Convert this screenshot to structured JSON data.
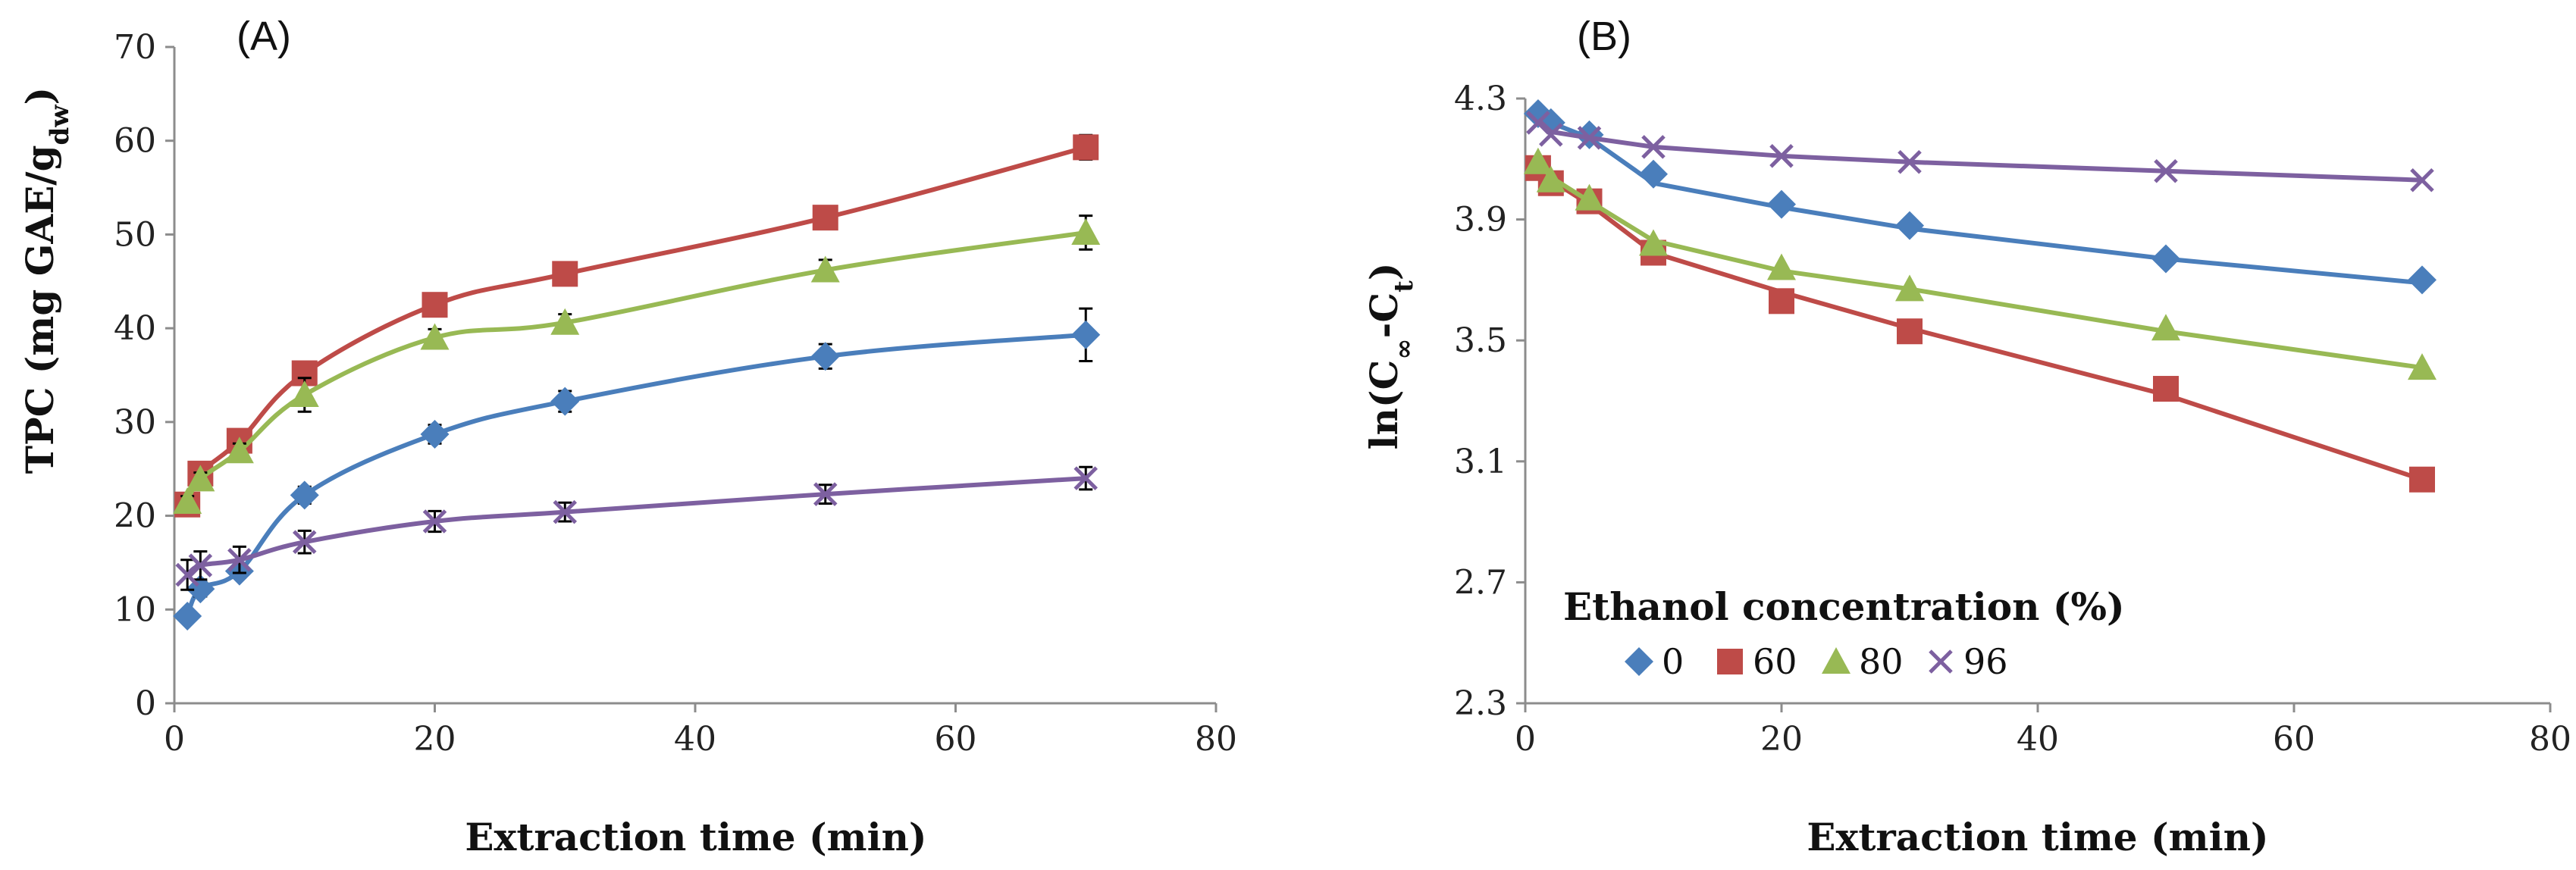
{
  "chart_data": [
    {
      "panel": "(A)",
      "type": "line",
      "xlabel": "Extraction time (min)",
      "ylabel": {
        "main": "TPC (mg GAE/g",
        "sub": "dw",
        "close": ")"
      },
      "xlim": [
        0,
        80
      ],
      "ylim": [
        0,
        70
      ],
      "xticks": [
        0,
        20,
        40,
        60,
        80
      ],
      "yticks": [
        0,
        10,
        20,
        30,
        40,
        50,
        60,
        70
      ],
      "grid": false,
      "error_bars": true,
      "series": [
        {
          "name": "0",
          "color": "#4a7ebb",
          "marker": "diamond",
          "x": [
            1,
            2,
            5,
            10,
            20,
            30,
            50,
            70
          ],
          "y": [
            9.3,
            12.2,
            14.1,
            22.2,
            28.7,
            32.2,
            37.0,
            39.3
          ],
          "err": [
            0.5,
            0.8,
            0.7,
            0.9,
            1.0,
            1.1,
            1.3,
            2.8
          ]
        },
        {
          "name": "60",
          "color": "#be4b48",
          "marker": "square",
          "x": [
            1,
            2,
            5,
            10,
            20,
            30,
            50,
            70
          ],
          "y": [
            21.2,
            24.5,
            28.0,
            35.2,
            42.5,
            45.8,
            51.8,
            59.3
          ],
          "err": [
            0.6,
            0.7,
            0.8,
            0.9,
            1.0,
            1.0,
            1.2,
            1.3
          ]
        },
        {
          "name": "80",
          "color": "#98b954",
          "marker": "triangle",
          "x": [
            1,
            2,
            5,
            10,
            20,
            30,
            50,
            70
          ],
          "y": [
            21.5,
            23.9,
            26.9,
            32.9,
            39.0,
            40.6,
            46.2,
            50.2
          ],
          "err": [
            0.6,
            0.7,
            0.8,
            1.8,
            0.9,
            0.9,
            1.1,
            1.8
          ]
        },
        {
          "name": "96",
          "color": "#7d60a0",
          "marker": "x",
          "x": [
            1,
            2,
            5,
            10,
            20,
            30,
            50,
            70
          ],
          "y": [
            13.7,
            14.7,
            15.3,
            17.2,
            19.4,
            20.4,
            22.3,
            24.0
          ],
          "err": [
            1.6,
            1.5,
            1.4,
            1.2,
            1.1,
            1.0,
            1.0,
            1.2
          ]
        }
      ]
    },
    {
      "panel": "(B)",
      "type": "line",
      "xlabel": "Extraction time (min)",
      "ylabel": {
        "main": "ln(C",
        "sub1": "∞",
        "mid": "-C",
        "sub2": "t",
        "close": ")"
      },
      "xlim": [
        0,
        80
      ],
      "ylim": [
        2.3,
        4.3
      ],
      "xticks": [
        0,
        20,
        40,
        60,
        80
      ],
      "yticks": [
        2.3,
        2.7,
        3.1,
        3.5,
        3.9,
        4.3
      ],
      "ytick_labels": [
        "2.3",
        "2.7",
        "3.1",
        "3.5",
        "3.9",
        "4.3"
      ],
      "grid": false,
      "series": [
        {
          "name": "0",
          "color": "#4a7ebb",
          "marker": "diamond",
          "x": [
            1,
            2,
            5,
            10,
            20,
            30,
            50,
            70
          ],
          "y": [
            4.25,
            4.22,
            4.18,
            4.05,
            3.95,
            3.88,
            3.77,
            3.7
          ],
          "fit": {
            "x": [
              1,
              2,
              5,
              10,
              20,
              30,
              50,
              70
            ],
            "y": [
              4.25,
              4.22,
              4.17,
              4.02,
              3.94,
              3.87,
              3.77,
              3.69
            ]
          }
        },
        {
          "name": "60",
          "color": "#be4b48",
          "marker": "square",
          "x": [
            1,
            2,
            5,
            10,
            20,
            30,
            50,
            70
          ],
          "y": [
            4.07,
            4.02,
            3.96,
            3.79,
            3.63,
            3.53,
            3.34,
            3.04
          ],
          "fit": {
            "x": [
              1,
              2,
              5,
              10,
              20,
              30,
              50,
              70
            ],
            "y": [
              4.07,
              4.03,
              3.95,
              3.79,
              3.66,
              3.54,
              3.32,
              3.04
            ]
          }
        },
        {
          "name": "80",
          "color": "#98b954",
          "marker": "triangle",
          "x": [
            1,
            2,
            5,
            10,
            20,
            30,
            50,
            70
          ],
          "y": [
            4.09,
            4.03,
            3.97,
            3.82,
            3.74,
            3.67,
            3.54,
            3.41
          ],
          "fit": {
            "x": [
              1,
              2,
              5,
              10,
              20,
              30,
              50,
              70
            ],
            "y": [
              4.09,
              4.04,
              3.96,
              3.83,
              3.73,
              3.67,
              3.53,
              3.41
            ]
          }
        },
        {
          "name": "96",
          "color": "#7d60a0",
          "marker": "x",
          "x": [
            1,
            2,
            5,
            10,
            20,
            30,
            50,
            70
          ],
          "y": [
            4.22,
            4.18,
            4.17,
            4.14,
            4.11,
            4.09,
            4.06,
            4.03
          ],
          "fit": {
            "x": [
              1,
              2,
              5,
              10,
              20,
              30,
              50,
              70
            ],
            "y": [
              4.23,
              4.19,
              4.17,
              4.14,
              4.11,
              4.09,
              4.06,
              4.03
            ]
          }
        }
      ],
      "legend": {
        "title": "Ethanol concentration (%)",
        "placement": "bottom-left",
        "entries": [
          "0",
          "60",
          "80",
          "96"
        ]
      }
    }
  ]
}
